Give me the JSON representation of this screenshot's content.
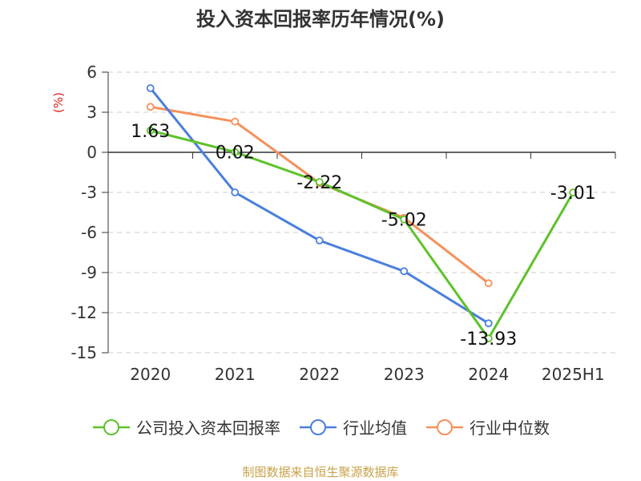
{
  "chart_data": {
    "type": "line",
    "title": "投入资本回报率历年情况(%)",
    "ylabel": "(%)",
    "xlabel": "",
    "categories": [
      "2020",
      "2021",
      "2022",
      "2023",
      "2024",
      "2025H1"
    ],
    "ylim": [
      -15,
      6
    ],
    "yticks": [
      6,
      3,
      0,
      -3,
      -6,
      -9,
      -12,
      -15
    ],
    "grid": "horizontal-dashed",
    "legend_position": "bottom",
    "series": [
      {
        "name": "公司投入资本回报率",
        "color": "#5dc22a",
        "values": [
          1.63,
          0.02,
          -2.22,
          -5.02,
          -13.93,
          -3.01
        ],
        "labels": [
          "1.63",
          "0.02",
          "-2.22",
          "-5.02",
          "-13.93",
          "-3.01"
        ]
      },
      {
        "name": "行业均值",
        "color": "#4a7fdc",
        "values": [
          4.8,
          -3.0,
          -6.6,
          -8.9,
          -12.8,
          null
        ]
      },
      {
        "name": "行业中位数",
        "color": "#f5915a",
        "values": [
          3.4,
          2.3,
          -2.3,
          -4.9,
          -9.8,
          null
        ]
      }
    ]
  },
  "source_note": "制图数据来自恒生聚源数据库"
}
